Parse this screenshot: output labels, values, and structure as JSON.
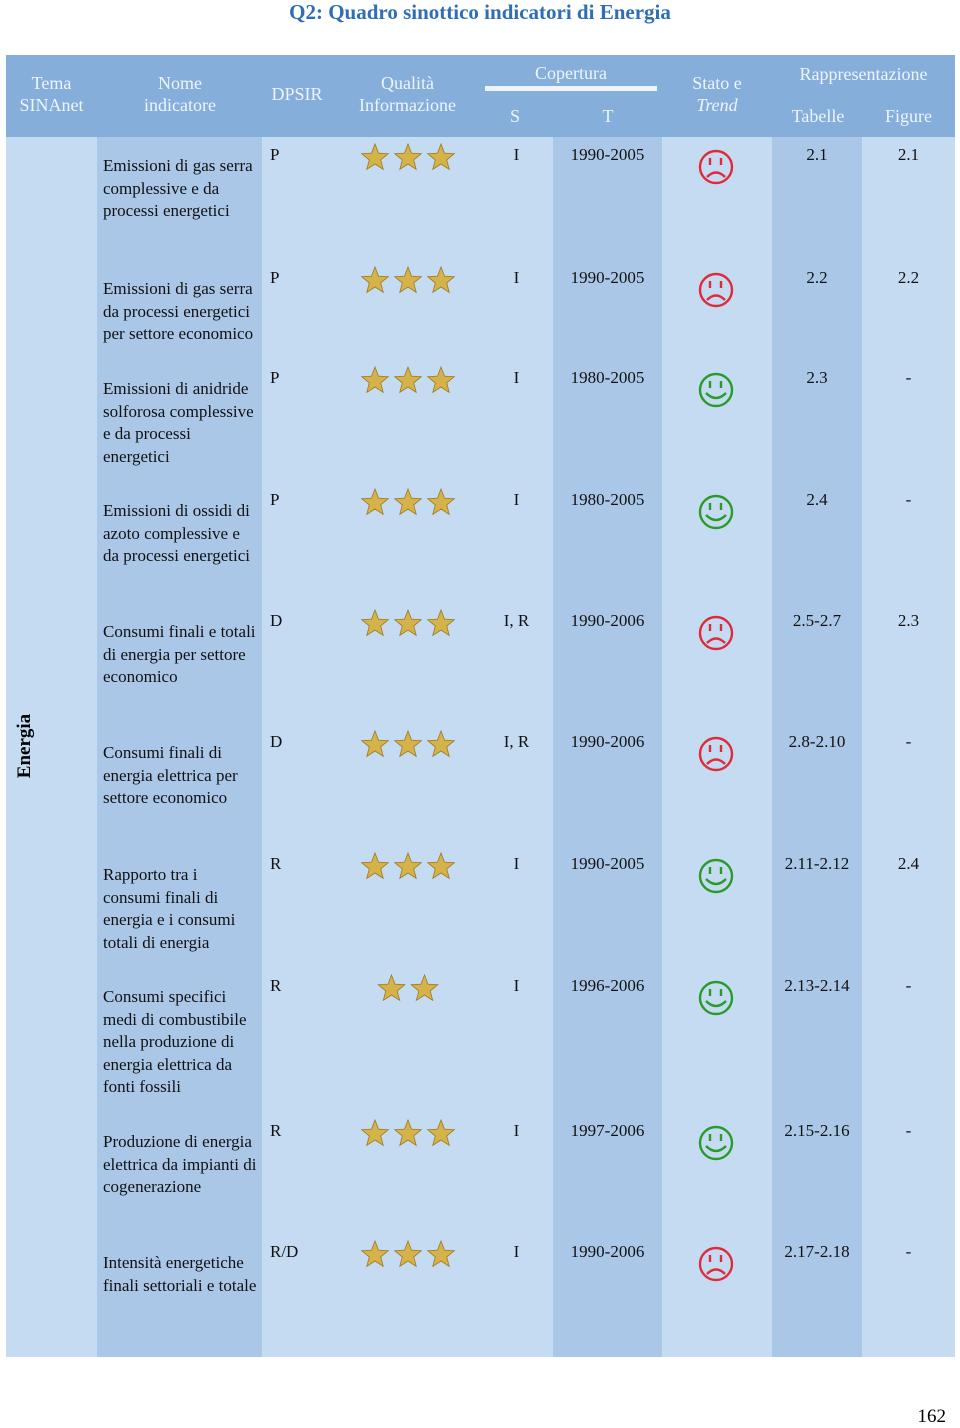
{
  "title": "Q2: Quadro sinottico indicatori di Energia",
  "header": {
    "tema": "Tema SINAnet",
    "nome": "Nome indicatore",
    "dpsir": "DPSIR",
    "qualita": "Qualità Informazione",
    "copertura": "Copertura",
    "s": "S",
    "t": "T",
    "stato": "Stato e",
    "trend": "Trend",
    "rappresentazione": "Rappresentazione",
    "tabelle": "Tabelle",
    "figure": "Figure"
  },
  "tema": "Energia",
  "rows": [
    {
      "nome": "Emissioni di gas serra complessive e da processi energetici",
      "dpsir": "P",
      "quality": 3,
      "s": "I",
      "t": "1990-2005",
      "stato": "sad",
      "tabelle": "2.1",
      "figure": "2.1"
    },
    {
      "nome": "Emissioni di gas serra da processi energetici per settore economico",
      "dpsir": "P",
      "quality": 3,
      "s": "I",
      "t": "1990-2005",
      "stato": "sad",
      "tabelle": "2.2",
      "figure": "2.2"
    },
    {
      "nome": "Emissioni di anidride solforosa complessive e da processi energetici",
      "dpsir": "P",
      "quality": 3,
      "s": "I",
      "t": "1980-2005",
      "stato": "happy",
      "tabelle": "2.3",
      "figure": "-"
    },
    {
      "nome": "Emissioni di ossidi di azoto complessive e da processi energetici",
      "dpsir": "P",
      "quality": 3,
      "s": "I",
      "t": "1980-2005",
      "stato": "happy",
      "tabelle": "2.4",
      "figure": "-"
    },
    {
      "nome": "Consumi finali e totali di energia per settore economico",
      "dpsir": "D",
      "quality": 3,
      "s": "I, R",
      "t": "1990-2006",
      "stato": "sad",
      "tabelle": "2.5-2.7",
      "figure": "2.3"
    },
    {
      "nome": "Consumi finali di energia elettrica per settore economico",
      "dpsir": "D",
      "quality": 3,
      "s": "I, R",
      "t": "1990-2006",
      "stato": "sad",
      "tabelle": "2.8-2.10",
      "figure": "-"
    },
    {
      "nome": "Rapporto tra i consumi finali di energia e i consumi totali di energia",
      "dpsir": "R",
      "quality": 3,
      "s": "I",
      "t": "1990-2005",
      "stato": "happy",
      "tabelle": "2.11-2.12",
      "figure": "2.4"
    },
    {
      "nome": "Consumi specifici medi di combustibile nella produzione di energia elettrica da fonti fossili",
      "dpsir": "R",
      "quality": 2,
      "s": "I",
      "t": "1996-2006",
      "stato": "happy",
      "tabelle": "2.13-2.14",
      "figure": "-"
    },
    {
      "nome": "Produzione di energia elettrica da impianti di cogenerazione",
      "dpsir": "R",
      "quality": 3,
      "s": "I",
      "t": "1997-2006",
      "stato": "happy",
      "tabelle": "2.15-2.16",
      "figure": "-"
    },
    {
      "nome": "Intensità energetiche finali settoriali e totale",
      "dpsir": "R/D",
      "quality": 3,
      "s": "I",
      "t": "1990-2006",
      "stato": "sad",
      "tabelle": "2.17-2.18",
      "figure": "-"
    }
  ],
  "page_number": "162"
}
